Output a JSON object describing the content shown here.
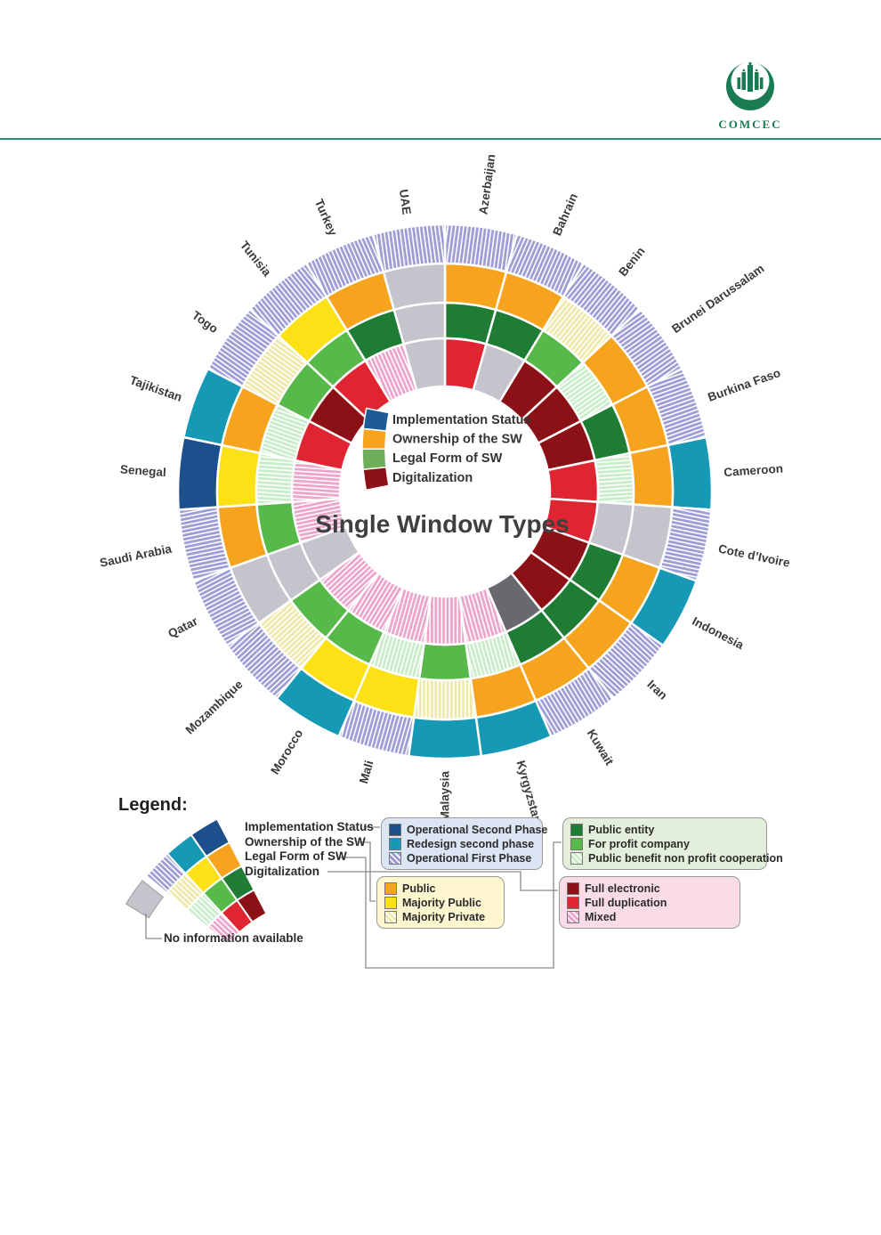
{
  "header": {
    "logo_text": "COMCEC",
    "logo_color": "#1a7a52",
    "divider_color": "#2f9268"
  },
  "chart_data": {
    "type": "sunburst",
    "title": "Single Window Types",
    "rings": [
      {
        "id": "implementation",
        "label": "Implementation Status"
      },
      {
        "id": "ownership",
        "label": "Ownership of the SW"
      },
      {
        "id": "legal",
        "label": "Legal Form of SW"
      },
      {
        "id": "digitalization",
        "label": "Digitalization"
      }
    ],
    "center_legend": [
      {
        "label": "Implementation Status",
        "color": "#1d5a96"
      },
      {
        "label": "Ownership of the SW",
        "color": "#f6a31d"
      },
      {
        "label": "Legal Form of SW",
        "color": "#6fae58"
      },
      {
        "label": "Digitalization",
        "color": "#8c1117"
      }
    ],
    "categories": {
      "op2": {
        "label": "Operational Second Phase",
        "color": "#1d4f8c",
        "hatched": false
      },
      "redesign": {
        "label": "Redesign second phase",
        "color": "#1699b4",
        "hatched": false
      },
      "op1": {
        "label": "Operational First Phase",
        "color": "#9d9dd6",
        "hatched": true
      },
      "public": {
        "label": "Public",
        "color": "#f6a31d",
        "hatched": false
      },
      "majpub": {
        "label": "Majority Public",
        "color": "#fbe116",
        "hatched": false
      },
      "majpriv": {
        "label": "Majority Private",
        "color": "#eee9ab",
        "hatched": true
      },
      "pubentity": {
        "label": "Public entity",
        "color": "#1e7c35",
        "hatched": false
      },
      "forprofit": {
        "label": "For profit company",
        "color": "#56b949",
        "hatched": false
      },
      "pubbenefit": {
        "label": "Public benefit non profit cooperation",
        "color": "#c9ecc9",
        "hatched": true
      },
      "fullelec": {
        "label": "Full electronic",
        "color": "#8c1117",
        "hatched": false
      },
      "fulldup": {
        "label": "Full duplication",
        "color": "#e02532",
        "hatched": false
      },
      "mixed": {
        "label": "Mixed",
        "color": "#eca4ca",
        "hatched": true
      },
      "noinfo": {
        "label": "No information available",
        "color": "#c5c4cd",
        "hatched": false
      },
      "noinfodark": {
        "label": "No information available",
        "color": "#68686e",
        "hatched": false
      }
    },
    "countries": [
      {
        "name": "Azerbaijan",
        "implementation": "op1",
        "ownership": "public",
        "legal": "pubentity",
        "digitalization": "fulldup"
      },
      {
        "name": "Bahrain",
        "implementation": "op1",
        "ownership": "public",
        "legal": "pubentity",
        "digitalization": "noinfo"
      },
      {
        "name": "Benin",
        "implementation": "op1",
        "ownership": "majpriv",
        "legal": "forprofit",
        "digitalization": "fullelec"
      },
      {
        "name": "Brunei Darussalam",
        "implementation": "op1",
        "ownership": "public",
        "legal": "pubbenefit",
        "digitalization": "fullelec"
      },
      {
        "name": "Burkina Faso",
        "implementation": "op1",
        "ownership": "public",
        "legal": "pubentity",
        "digitalization": "fullelec"
      },
      {
        "name": "Cameroon",
        "implementation": "redesign",
        "ownership": "public",
        "legal": "pubbenefit",
        "digitalization": "fulldup"
      },
      {
        "name": "Cote d’Ivoire",
        "implementation": "op1",
        "ownership": "noinfo",
        "legal": "noinfo",
        "digitalization": "fulldup"
      },
      {
        "name": "Indonesia",
        "implementation": "redesign",
        "ownership": "public",
        "legal": "pubentity",
        "digitalization": "fullelec"
      },
      {
        "name": "Iran",
        "implementation": "op1",
        "ownership": "public",
        "legal": "pubentity",
        "digitalization": "fullelec"
      },
      {
        "name": "Kuwait",
        "implementation": "op1",
        "ownership": "public",
        "legal": "pubentity",
        "digitalization": "noinfodark"
      },
      {
        "name": "Kyrgyzstan",
        "implementation": "redesign",
        "ownership": "public",
        "legal": "pubbenefit",
        "digitalization": "mixed"
      },
      {
        "name": "Malaysia",
        "implementation": "redesign",
        "ownership": "majpriv",
        "legal": "forprofit",
        "digitalization": "mixed"
      },
      {
        "name": "Mali",
        "implementation": "op1",
        "ownership": "majpub",
        "legal": "pubbenefit",
        "digitalization": "mixed"
      },
      {
        "name": "Morocco",
        "implementation": "redesign",
        "ownership": "majpub",
        "legal": "forprofit",
        "digitalization": "mixed"
      },
      {
        "name": "Mozambique",
        "implementation": "op1",
        "ownership": "majpriv",
        "legal": "forprofit",
        "digitalization": "mixed"
      },
      {
        "name": "Qatar",
        "implementation": "op1",
        "ownership": "noinfo",
        "legal": "noinfo",
        "digitalization": "noinfo"
      },
      {
        "name": "Saudi Arabia",
        "implementation": "op1",
        "ownership": "public",
        "legal": "forprofit",
        "digitalization": "mixed"
      },
      {
        "name": "Senegal",
        "implementation": "op2",
        "ownership": "majpub",
        "legal": "pubbenefit",
        "digitalization": "mixed"
      },
      {
        "name": "Tajikistan",
        "implementation": "redesign",
        "ownership": "public",
        "legal": "pubbenefit",
        "digitalization": "fulldup"
      },
      {
        "name": "Togo",
        "implementation": "op1",
        "ownership": "majpriv",
        "legal": "forprofit",
        "digitalization": "fullelec"
      },
      {
        "name": "Tunisia",
        "implementation": "op1",
        "ownership": "majpub",
        "legal": "forprofit",
        "digitalization": "fulldup"
      },
      {
        "name": "Turkey",
        "implementation": "op1",
        "ownership": "public",
        "legal": "pubentity",
        "digitalization": "mixed"
      },
      {
        "name": "UAE",
        "implementation": "op1",
        "ownership": "noinfo",
        "legal": "noinfo",
        "digitalization": "noinfo"
      }
    ]
  },
  "legend": {
    "title": "Legend:",
    "fan_labels": [
      "Implementation Status",
      "Ownership of the SW",
      "Legal Form of SW",
      "Digitalization"
    ],
    "no_info_label": "No information available",
    "boxes": [
      {
        "id": "implementation-box",
        "bg": "#dbe5f3",
        "items": [
          "op2",
          "redesign",
          "op1"
        ]
      },
      {
        "id": "legal-box",
        "bg": "#e3efdb",
        "items": [
          "pubentity",
          "forprofit",
          "pubbenefit"
        ]
      },
      {
        "id": "ownership-box",
        "bg": "#fdf6cf",
        "items": [
          "public",
          "majpub",
          "majpriv"
        ]
      },
      {
        "id": "digitalization-box",
        "bg": "#fadce8",
        "items": [
          "fullelec",
          "fulldup",
          "mixed"
        ]
      }
    ]
  }
}
